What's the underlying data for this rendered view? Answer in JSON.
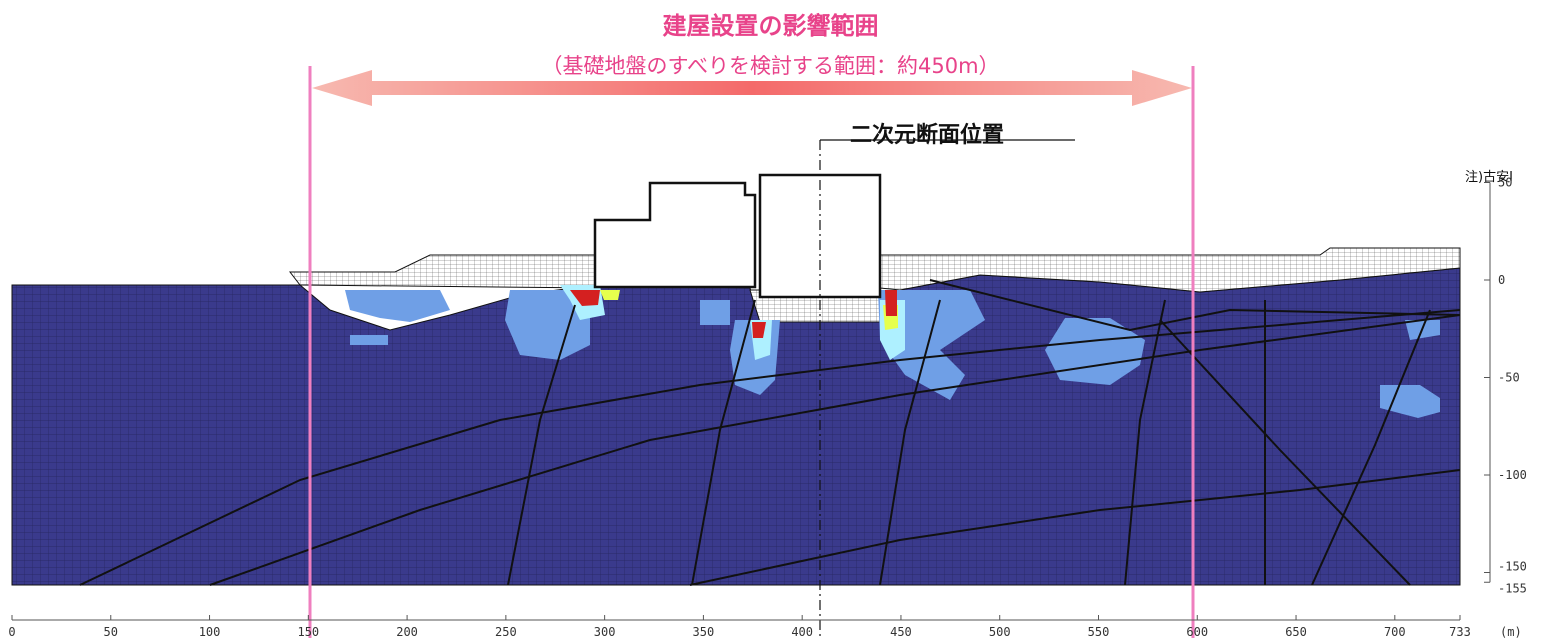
{
  "title": "建屋設置の影響範囲",
  "subtitle": "（基礎地盤のすべりを検討する範囲：約450m）",
  "section_label": "二次元断面位置",
  "note": "注)古安Ⅰ",
  "x_axis": {
    "ticks": [
      "0",
      "50",
      "100",
      "150",
      "200",
      "250",
      "300",
      "350",
      "400",
      "450",
      "500",
      "550",
      "600",
      "650",
      "700",
      "733"
    ],
    "unit": "(m)"
  },
  "y_axis": {
    "ticks": [
      "50",
      "0",
      "-50",
      "-100",
      "-150",
      "-155"
    ]
  },
  "colors": {
    "ground": "#3a3a8c",
    "grid": "#2b2b6a",
    "range_line": "#ef7fbf",
    "arrow": "#f6a0a0",
    "title": "#e8438a",
    "zone_light": "#6f9fe6",
    "zone_cyan": "#aef0ff",
    "zone_yellow": "#e6ff4d",
    "zone_red": "#d42020"
  }
}
